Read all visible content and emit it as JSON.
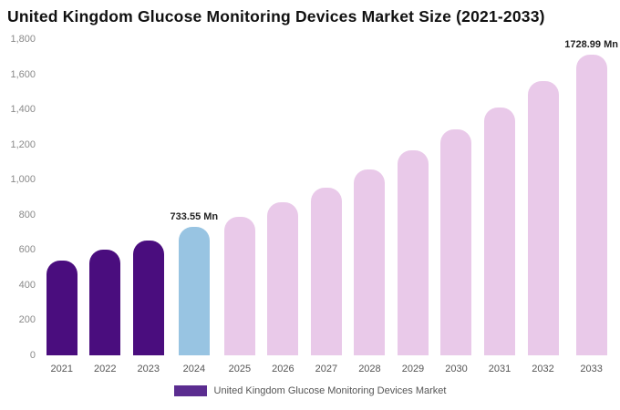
{
  "legend": {
    "label": "United Kingdom Glucose Monitoring Devices Market",
    "color": "#5b2d90"
  },
  "colors": {
    "historical": "#4a0d7e",
    "current": "#98c4e2",
    "forecast": "#e9c9e9"
  },
  "chart_data": {
    "type": "bar",
    "title": "United Kingdom Glucose Monitoring Devices Market Size (2021-2033)",
    "xlabel": "",
    "ylabel": "",
    "categories": [
      "2021",
      "2022",
      "2023",
      "2024",
      "2025",
      "2026",
      "2027",
      "2028",
      "2029",
      "2030",
      "2031",
      "2032",
      "2033"
    ],
    "values": [
      540,
      600,
      655,
      733.55,
      790,
      872,
      957,
      1058,
      1168,
      1286,
      1412,
      1562,
      1728.99
    ],
    "unit": "Mn",
    "ylim": [
      0,
      1800
    ],
    "ytick_step": 200,
    "yticks": [
      "0",
      "200",
      "400",
      "600",
      "800",
      "1,000",
      "1,200",
      "1,400",
      "1,600",
      "1,800"
    ],
    "grid": false,
    "legend_position": "bottom",
    "bar_colors": [
      "historical",
      "historical",
      "historical",
      "current",
      "forecast",
      "forecast",
      "forecast",
      "forecast",
      "forecast",
      "forecast",
      "forecast",
      "forecast",
      "forecast"
    ],
    "annotations": [
      {
        "category": "2024",
        "text": "733.55 Mn"
      },
      {
        "category": "2033",
        "text": "1728.99 Mn"
      }
    ]
  }
}
